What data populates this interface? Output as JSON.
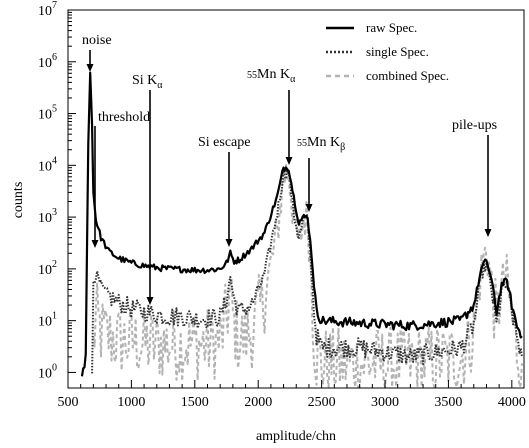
{
  "chart_data": {
    "type": "line",
    "title": "",
    "xlabel": "amplitude/chn",
    "ylabel": "counts",
    "xlim": [
      500,
      4096
    ],
    "ylim": [
      0.5,
      10000000
    ],
    "yscale": "log",
    "x_ticks": [
      500,
      1000,
      1500,
      2000,
      2500,
      3000,
      3500,
      4000
    ],
    "x_tick_labels": [
      "500",
      "1000",
      "1500",
      "2000",
      "2500",
      "3000",
      "3500",
      "4000"
    ],
    "y_ticks": [
      1,
      10,
      100,
      1000,
      10000,
      100000,
      1000000,
      10000000
    ],
    "y_tick_mantissa": [
      "10",
      "10",
      "10",
      "10",
      "10",
      "10",
      "10",
      "10"
    ],
    "y_tick_exponents": [
      "0",
      "1",
      "2",
      "3",
      "4",
      "5",
      "6",
      "7"
    ],
    "grid": false,
    "legend_position": "top-right",
    "series": [
      {
        "name": "raw Spec.",
        "style": "solid",
        "color": "#000000",
        "x": [
          610,
          640,
          660,
          675,
          690,
          700,
          720,
          760,
          820,
          900,
          1000,
          1100,
          1200,
          1300,
          1400,
          1500,
          1600,
          1700,
          1750,
          1780,
          1810,
          1850,
          1950,
          2050,
          2150,
          2200,
          2240,
          2280,
          2320,
          2360,
          2390,
          2420,
          2440,
          2460,
          2500,
          2800,
          3200,
          3600,
          3700,
          3760,
          3800,
          3840,
          3880,
          3920,
          3960,
          4000,
          4040,
          4080
        ],
        "y": [
          0.7,
          2,
          30000,
          600000,
          60000,
          3000,
          900,
          400,
          220,
          160,
          130,
          115,
          105,
          100,
          98,
          95,
          95,
          100,
          130,
          200,
          140,
          150,
          250,
          500,
          2500,
          9000,
          9000,
          2500,
          800,
          1000,
          1000,
          200,
          50,
          15,
          10,
          9,
          8,
          10,
          20,
          100,
          150,
          60,
          15,
          50,
          60,
          20,
          8,
          5
        ]
      },
      {
        "name": "single Spec.",
        "style": "dotted",
        "color": "#333333",
        "x": [
          690,
          700,
          720,
          760,
          820,
          900,
          1000,
          1100,
          1200,
          1300,
          1400,
          1500,
          1600,
          1700,
          1750,
          1780,
          1810,
          1850,
          1950,
          2050,
          2150,
          2200,
          2240,
          2280,
          2320,
          2360,
          2390,
          2420,
          2440,
          2460,
          2500,
          2800,
          3200,
          3600,
          3700,
          3760,
          3800,
          3840,
          3880,
          3920,
          3960,
          4000,
          4040,
          4080
        ],
        "y": [
          0.7,
          60,
          80,
          45,
          30,
          22,
          17,
          15,
          13,
          12,
          12,
          11,
          11,
          12,
          25,
          70,
          25,
          15,
          20,
          80,
          1200,
          7000,
          7500,
          1200,
          400,
          900,
          900,
          100,
          15,
          5,
          3,
          3,
          2,
          3,
          8,
          80,
          120,
          40,
          8,
          40,
          50,
          15,
          5,
          2
        ]
      },
      {
        "name": "combined Spec.",
        "style": "dashed",
        "color": "#b3b3b3",
        "x": [
          700,
          720,
          760,
          820,
          900,
          1000,
          1100,
          1200,
          1300,
          1400,
          1500,
          1600,
          1700,
          1750,
          1780,
          1810,
          1850,
          1950,
          2050,
          2150,
          2200,
          2240,
          2280,
          2320,
          2360,
          2390,
          2420,
          2440,
          2460,
          2500,
          2800,
          3200,
          3600,
          3700,
          3760,
          3800,
          3840,
          3880,
          3920,
          3960,
          4000,
          4040,
          4080
        ],
        "y": [
          3,
          12,
          6,
          5,
          4,
          4,
          3.5,
          3.5,
          3.5,
          3.5,
          3.5,
          3.5,
          4,
          12,
          30,
          8,
          4,
          6,
          30,
          500,
          6000,
          8000,
          1000,
          300,
          900,
          1000,
          60,
          5,
          2,
          1.5,
          1.5,
          1.5,
          2,
          6,
          100,
          250,
          50,
          8,
          50,
          70,
          12,
          3,
          1.5
        ]
      }
    ],
    "annotations": [
      {
        "parts": [
          {
            "t": "noise"
          }
        ],
        "text_x": 82,
        "text_y": 44,
        "arrow_x": 90,
        "arrow_y0": 50,
        "arrow_y1": 72
      },
      {
        "parts": [
          {
            "t": "threshold"
          }
        ],
        "text_x": 98,
        "text_y": 121,
        "arrow_x": 95,
        "arrow_y0": 126,
        "arrow_y1": 248
      },
      {
        "parts": [
          {
            "t": "Si K"
          },
          {
            "t": "α",
            "sub": true
          }
        ],
        "text_x": 132,
        "text_y": 84,
        "arrow_x": 150,
        "arrow_y0": 90,
        "arrow_y1": 305
      },
      {
        "parts": [
          {
            "t": "Si escape"
          }
        ],
        "text_x": 198,
        "text_y": 146,
        "arrow_x": 229,
        "arrow_y0": 152,
        "arrow_y1": 247
      },
      {
        "parts": [
          {
            "t": "55",
            "sup": true
          },
          {
            "t": "Mn K"
          },
          {
            "t": "α",
            "sub": true
          }
        ],
        "text_x": 247,
        "text_y": 84,
        "arrow_x": 289,
        "arrow_y0": 90,
        "arrow_y1": 165
      },
      {
        "parts": [
          {
            "t": "55",
            "sup": true
          },
          {
            "t": "Mn K"
          },
          {
            "t": "β",
            "sub": true
          }
        ],
        "text_x": 297,
        "text_y": 152,
        "arrow_x": 309,
        "arrow_y0": 158,
        "arrow_y1": 212
      },
      {
        "parts": [
          {
            "t": "pile-ups"
          }
        ],
        "text_x": 452,
        "text_y": 129,
        "arrow_x": 488,
        "arrow_y0": 135,
        "arrow_y1": 237
      }
    ]
  }
}
